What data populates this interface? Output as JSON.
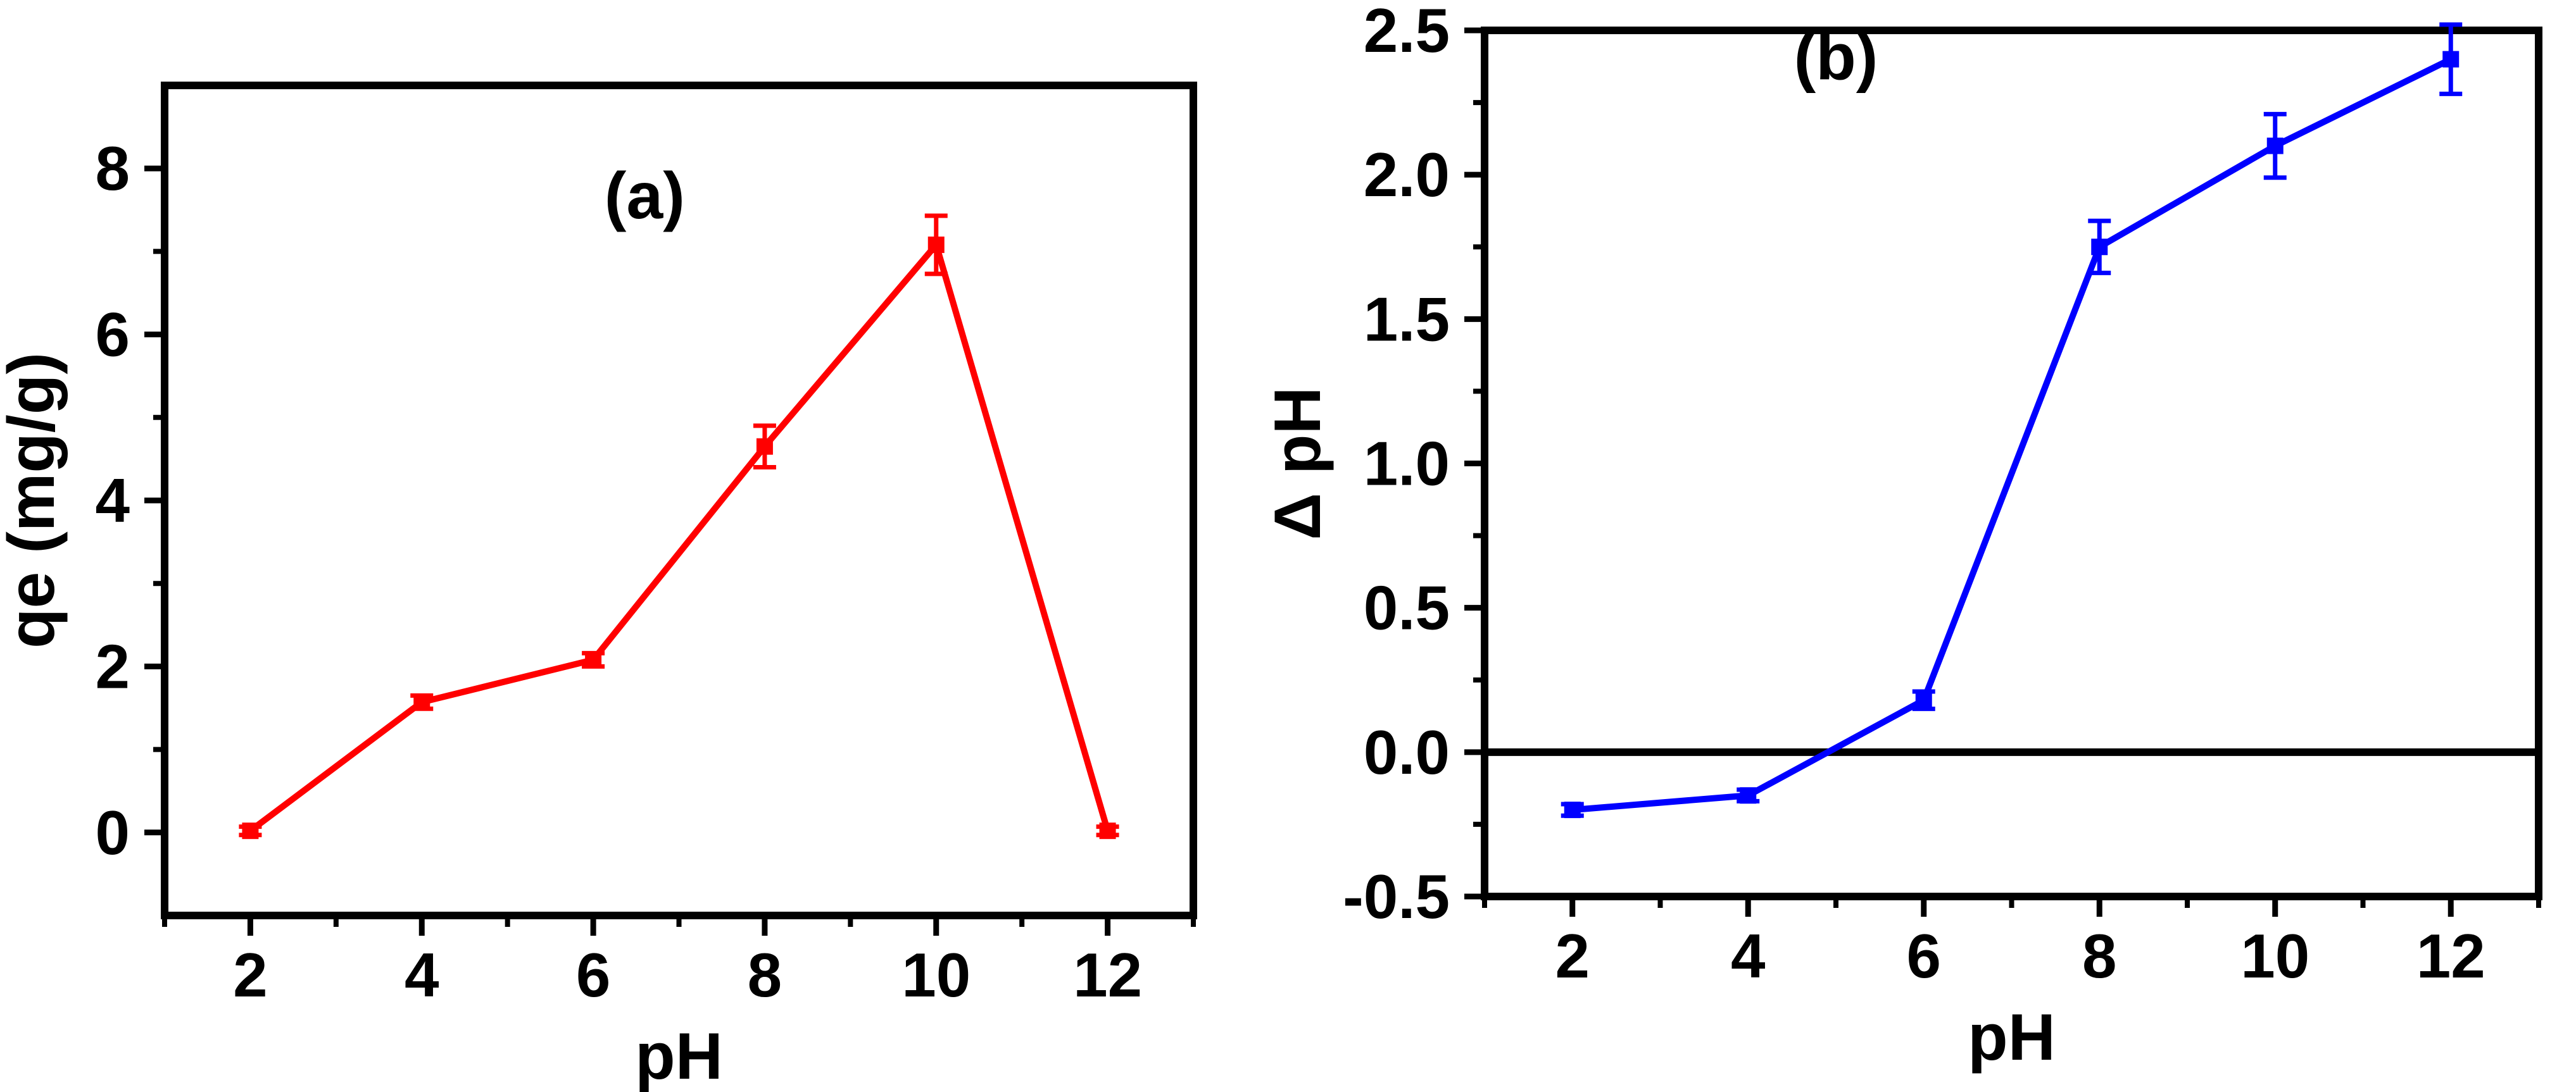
{
  "chart_data": [
    {
      "type": "line",
      "panel_label": "(a)",
      "xlabel": "pH",
      "ylabel": "qe (mg/g)",
      "xlim": [
        1,
        13
      ],
      "ylim": [
        -1,
        9
      ],
      "xticks": [
        2,
        4,
        6,
        8,
        10,
        12
      ],
      "yticks": [
        0,
        2,
        4,
        6,
        8
      ],
      "xtick_labels": [
        "2",
        "4",
        "6",
        "8",
        "10",
        "12"
      ],
      "ytick_labels": [
        "0",
        "2",
        "4",
        "6",
        "8"
      ],
      "color": "#ff0000",
      "zero_line": false,
      "series": [
        {
          "x": [
            2,
            4,
            6,
            8,
            10,
            12
          ],
          "y": [
            0.02,
            1.57,
            2.08,
            4.65,
            7.08,
            0.02
          ],
          "err": [
            0.05,
            0.08,
            0.08,
            0.25,
            0.35,
            0.05
          ]
        }
      ]
    },
    {
      "type": "line",
      "panel_label": "(b)",
      "xlabel": "pH",
      "ylabel": "Δ pH",
      "xlim": [
        1,
        13
      ],
      "ylim": [
        -0.5,
        2.5
      ],
      "xticks": [
        2,
        4,
        6,
        8,
        10,
        12
      ],
      "yticks": [
        -0.5,
        0,
        0.5,
        1.0,
        1.5,
        2.0,
        2.5
      ],
      "xtick_labels": [
        "2",
        "4",
        "6",
        "8",
        "10",
        "12"
      ],
      "ytick_labels": [
        "-0.5",
        "0.0",
        "0.5",
        "1.0",
        "1.5",
        "2.0",
        "2.5"
      ],
      "color": "#0000ff",
      "zero_line": true,
      "series": [
        {
          "x": [
            2,
            4,
            6,
            8,
            10,
            12
          ],
          "y": [
            -0.2,
            -0.15,
            0.18,
            1.75,
            2.1,
            2.4
          ],
          "err": [
            0.02,
            0.02,
            0.03,
            0.09,
            0.11,
            0.12
          ]
        }
      ]
    }
  ]
}
